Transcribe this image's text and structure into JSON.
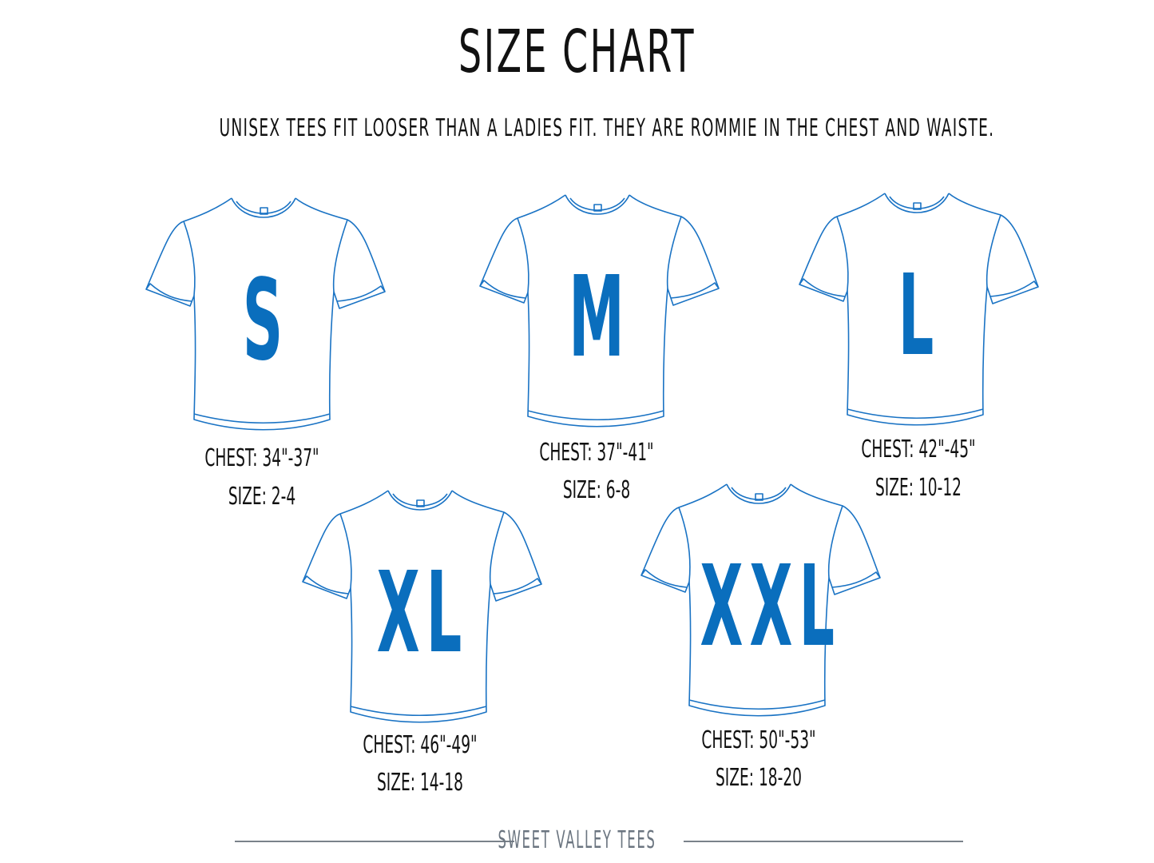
{
  "title": "SIZE CHART",
  "subtitle": "UNISEX TEES FIT LOOSER THAN A LADIES FIT.  THEY ARE ROMMIE IN THE CHEST AND WAISTE.",
  "colors": {
    "shirt_outline": "#1a73c4",
    "size_letter": "#0a6ebd",
    "text": "#111111",
    "footer": "#6b7580"
  },
  "sizes": [
    {
      "letter": "S",
      "chest": "CHEST: 34\"-37\"",
      "size": "SIZE: 2-4"
    },
    {
      "letter": "M",
      "chest": "CHEST: 37\"-41\"",
      "size": "SIZE: 6-8"
    },
    {
      "letter": "L",
      "chest": "CHEST: 42\"-45\"",
      "size": "SIZE: 10-12"
    },
    {
      "letter": "XL",
      "chest": "CHEST: 46\"-49\"",
      "size": "SIZE: 14-18"
    },
    {
      "letter": "XXL",
      "chest": "CHEST: 50\"-53\"",
      "size": "SIZE: 18-20"
    }
  ],
  "footer": "SWEET VALLEY TEES"
}
